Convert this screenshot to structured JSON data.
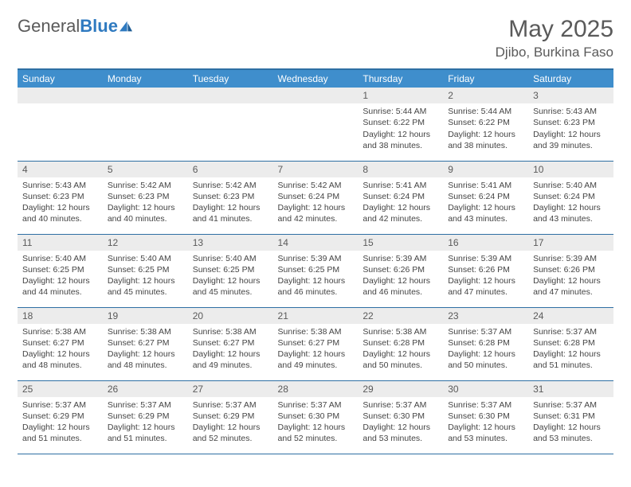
{
  "logo": {
    "text1": "General",
    "text2": "Blue"
  },
  "title": "May 2025",
  "location": "Djibo, Burkina Faso",
  "weekdays": [
    "Sunday",
    "Monday",
    "Tuesday",
    "Wednesday",
    "Thursday",
    "Friday",
    "Saturday"
  ],
  "colors": {
    "header_bg": "#3f8ecc",
    "header_border": "#2e6fa3",
    "daynum_bg": "#ececec",
    "text_gray": "#5a5a5a",
    "logo_blue": "#2f7ac0"
  },
  "weeks": [
    [
      {
        "n": "",
        "sr": "",
        "ss": "",
        "dl": ""
      },
      {
        "n": "",
        "sr": "",
        "ss": "",
        "dl": ""
      },
      {
        "n": "",
        "sr": "",
        "ss": "",
        "dl": ""
      },
      {
        "n": "",
        "sr": "",
        "ss": "",
        "dl": ""
      },
      {
        "n": "1",
        "sr": "Sunrise: 5:44 AM",
        "ss": "Sunset: 6:22 PM",
        "dl": "Daylight: 12 hours and 38 minutes."
      },
      {
        "n": "2",
        "sr": "Sunrise: 5:44 AM",
        "ss": "Sunset: 6:22 PM",
        "dl": "Daylight: 12 hours and 38 minutes."
      },
      {
        "n": "3",
        "sr": "Sunrise: 5:43 AM",
        "ss": "Sunset: 6:23 PM",
        "dl": "Daylight: 12 hours and 39 minutes."
      }
    ],
    [
      {
        "n": "4",
        "sr": "Sunrise: 5:43 AM",
        "ss": "Sunset: 6:23 PM",
        "dl": "Daylight: 12 hours and 40 minutes."
      },
      {
        "n": "5",
        "sr": "Sunrise: 5:42 AM",
        "ss": "Sunset: 6:23 PM",
        "dl": "Daylight: 12 hours and 40 minutes."
      },
      {
        "n": "6",
        "sr": "Sunrise: 5:42 AM",
        "ss": "Sunset: 6:23 PM",
        "dl": "Daylight: 12 hours and 41 minutes."
      },
      {
        "n": "7",
        "sr": "Sunrise: 5:42 AM",
        "ss": "Sunset: 6:24 PM",
        "dl": "Daylight: 12 hours and 42 minutes."
      },
      {
        "n": "8",
        "sr": "Sunrise: 5:41 AM",
        "ss": "Sunset: 6:24 PM",
        "dl": "Daylight: 12 hours and 42 minutes."
      },
      {
        "n": "9",
        "sr": "Sunrise: 5:41 AM",
        "ss": "Sunset: 6:24 PM",
        "dl": "Daylight: 12 hours and 43 minutes."
      },
      {
        "n": "10",
        "sr": "Sunrise: 5:40 AM",
        "ss": "Sunset: 6:24 PM",
        "dl": "Daylight: 12 hours and 43 minutes."
      }
    ],
    [
      {
        "n": "11",
        "sr": "Sunrise: 5:40 AM",
        "ss": "Sunset: 6:25 PM",
        "dl": "Daylight: 12 hours and 44 minutes."
      },
      {
        "n": "12",
        "sr": "Sunrise: 5:40 AM",
        "ss": "Sunset: 6:25 PM",
        "dl": "Daylight: 12 hours and 45 minutes."
      },
      {
        "n": "13",
        "sr": "Sunrise: 5:40 AM",
        "ss": "Sunset: 6:25 PM",
        "dl": "Daylight: 12 hours and 45 minutes."
      },
      {
        "n": "14",
        "sr": "Sunrise: 5:39 AM",
        "ss": "Sunset: 6:25 PM",
        "dl": "Daylight: 12 hours and 46 minutes."
      },
      {
        "n": "15",
        "sr": "Sunrise: 5:39 AM",
        "ss": "Sunset: 6:26 PM",
        "dl": "Daylight: 12 hours and 46 minutes."
      },
      {
        "n": "16",
        "sr": "Sunrise: 5:39 AM",
        "ss": "Sunset: 6:26 PM",
        "dl": "Daylight: 12 hours and 47 minutes."
      },
      {
        "n": "17",
        "sr": "Sunrise: 5:39 AM",
        "ss": "Sunset: 6:26 PM",
        "dl": "Daylight: 12 hours and 47 minutes."
      }
    ],
    [
      {
        "n": "18",
        "sr": "Sunrise: 5:38 AM",
        "ss": "Sunset: 6:27 PM",
        "dl": "Daylight: 12 hours and 48 minutes."
      },
      {
        "n": "19",
        "sr": "Sunrise: 5:38 AM",
        "ss": "Sunset: 6:27 PM",
        "dl": "Daylight: 12 hours and 48 minutes."
      },
      {
        "n": "20",
        "sr": "Sunrise: 5:38 AM",
        "ss": "Sunset: 6:27 PM",
        "dl": "Daylight: 12 hours and 49 minutes."
      },
      {
        "n": "21",
        "sr": "Sunrise: 5:38 AM",
        "ss": "Sunset: 6:27 PM",
        "dl": "Daylight: 12 hours and 49 minutes."
      },
      {
        "n": "22",
        "sr": "Sunrise: 5:38 AM",
        "ss": "Sunset: 6:28 PM",
        "dl": "Daylight: 12 hours and 50 minutes."
      },
      {
        "n": "23",
        "sr": "Sunrise: 5:37 AM",
        "ss": "Sunset: 6:28 PM",
        "dl": "Daylight: 12 hours and 50 minutes."
      },
      {
        "n": "24",
        "sr": "Sunrise: 5:37 AM",
        "ss": "Sunset: 6:28 PM",
        "dl": "Daylight: 12 hours and 51 minutes."
      }
    ],
    [
      {
        "n": "25",
        "sr": "Sunrise: 5:37 AM",
        "ss": "Sunset: 6:29 PM",
        "dl": "Daylight: 12 hours and 51 minutes."
      },
      {
        "n": "26",
        "sr": "Sunrise: 5:37 AM",
        "ss": "Sunset: 6:29 PM",
        "dl": "Daylight: 12 hours and 51 minutes."
      },
      {
        "n": "27",
        "sr": "Sunrise: 5:37 AM",
        "ss": "Sunset: 6:29 PM",
        "dl": "Daylight: 12 hours and 52 minutes."
      },
      {
        "n": "28",
        "sr": "Sunrise: 5:37 AM",
        "ss": "Sunset: 6:30 PM",
        "dl": "Daylight: 12 hours and 52 minutes."
      },
      {
        "n": "29",
        "sr": "Sunrise: 5:37 AM",
        "ss": "Sunset: 6:30 PM",
        "dl": "Daylight: 12 hours and 53 minutes."
      },
      {
        "n": "30",
        "sr": "Sunrise: 5:37 AM",
        "ss": "Sunset: 6:30 PM",
        "dl": "Daylight: 12 hours and 53 minutes."
      },
      {
        "n": "31",
        "sr": "Sunrise: 5:37 AM",
        "ss": "Sunset: 6:31 PM",
        "dl": "Daylight: 12 hours and 53 minutes."
      }
    ]
  ]
}
